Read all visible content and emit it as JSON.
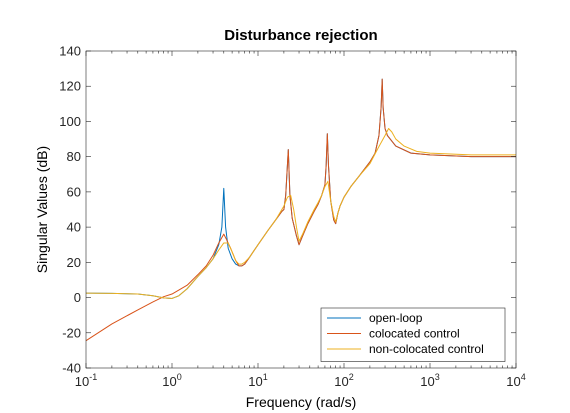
{
  "chart_data": {
    "type": "line",
    "title": "Disturbance rejection",
    "xlabel": "Frequency (rad/s)",
    "ylabel": "Singular Values (dB)",
    "xscale": "log",
    "xlim": [
      0.1,
      10000
    ],
    "ylim": [
      -40,
      140
    ],
    "xticks": [
      {
        "value": 0.1,
        "base": "10",
        "exp": "-1"
      },
      {
        "value": 1,
        "base": "10",
        "exp": "0"
      },
      {
        "value": 10,
        "base": "10",
        "exp": "1"
      },
      {
        "value": 100,
        "base": "10",
        "exp": "2"
      },
      {
        "value": 1000,
        "base": "10",
        "exp": "3"
      },
      {
        "value": 10000,
        "base": "10",
        "exp": "4"
      }
    ],
    "yticks": [
      -40,
      -20,
      0,
      20,
      40,
      60,
      80,
      100,
      120,
      140
    ],
    "grid": false,
    "legend_position": "bottom-right",
    "series": [
      {
        "name": "open-loop",
        "color": "#0072BD",
        "points": [
          [
            0.1,
            2.5
          ],
          [
            0.2,
            2.4
          ],
          [
            0.4,
            2
          ],
          [
            0.6,
            1
          ],
          [
            0.8,
            -0.2
          ],
          [
            1.0,
            -0.5
          ],
          [
            1.2,
            1
          ],
          [
            1.5,
            5
          ],
          [
            2.0,
            12
          ],
          [
            2.5,
            17
          ],
          [
            3.0,
            22
          ],
          [
            3.5,
            30
          ],
          [
            3.8,
            40
          ],
          [
            4.0,
            62
          ],
          [
            4.2,
            40
          ],
          [
            4.5,
            28
          ],
          [
            5.0,
            22
          ],
          [
            5.5,
            19
          ],
          [
            6.0,
            18
          ],
          [
            6.5,
            18
          ],
          [
            7.0,
            19
          ],
          [
            8.0,
            23
          ],
          [
            10,
            30
          ],
          [
            13,
            38
          ],
          [
            16,
            44
          ],
          [
            19,
            49
          ],
          [
            20,
            50
          ],
          [
            21,
            58
          ],
          [
            22.5,
            84
          ],
          [
            23.5,
            58
          ],
          [
            25,
            45
          ],
          [
            28,
            35
          ],
          [
            30,
            30
          ],
          [
            33,
            35
          ],
          [
            38,
            42
          ],
          [
            45,
            49
          ],
          [
            50,
            53
          ],
          [
            55,
            58
          ],
          [
            60,
            64
          ],
          [
            62,
            75
          ],
          [
            64,
            93
          ],
          [
            66,
            75
          ],
          [
            70,
            55
          ],
          [
            76,
            44
          ],
          [
            80,
            42
          ],
          [
            85,
            48
          ],
          [
            90,
            52
          ],
          [
            100,
            57
          ],
          [
            120,
            63
          ],
          [
            150,
            69
          ],
          [
            200,
            77
          ],
          [
            230,
            82
          ],
          [
            255,
            92
          ],
          [
            270,
            108
          ],
          [
            278,
            124
          ],
          [
            285,
            108
          ],
          [
            300,
            96
          ],
          [
            320,
            92
          ],
          [
            400,
            86
          ],
          [
            600,
            82
          ],
          [
            1000,
            81
          ],
          [
            3000,
            80
          ],
          [
            10000,
            80
          ]
        ]
      },
      {
        "name": "colocated control",
        "color": "#D95319",
        "points": [
          [
            0.1,
            -24.5
          ],
          [
            0.2,
            -15
          ],
          [
            0.4,
            -7
          ],
          [
            0.6,
            -2.5
          ],
          [
            0.8,
            0.5
          ],
          [
            1.0,
            2
          ],
          [
            1.5,
            7
          ],
          [
            2.0,
            13
          ],
          [
            2.5,
            18
          ],
          [
            3.0,
            24
          ],
          [
            3.5,
            31
          ],
          [
            4.0,
            36
          ],
          [
            4.3,
            33
          ],
          [
            4.8,
            28
          ],
          [
            5.5,
            21
          ],
          [
            6.0,
            18
          ],
          [
            6.5,
            18
          ],
          [
            7.0,
            19
          ],
          [
            8.0,
            23
          ],
          [
            10,
            30
          ],
          [
            13,
            38
          ],
          [
            16,
            44
          ],
          [
            19,
            49
          ],
          [
            20,
            50
          ],
          [
            21,
            58
          ],
          [
            22.5,
            84
          ],
          [
            23.5,
            58
          ],
          [
            25,
            45
          ],
          [
            28,
            35
          ],
          [
            30,
            30
          ],
          [
            33,
            35
          ],
          [
            38,
            42
          ],
          [
            45,
            49
          ],
          [
            50,
            53
          ],
          [
            55,
            58
          ],
          [
            60,
            64
          ],
          [
            62,
            75
          ],
          [
            64,
            93
          ],
          [
            66,
            75
          ],
          [
            70,
            55
          ],
          [
            76,
            44
          ],
          [
            80,
            42
          ],
          [
            85,
            48
          ],
          [
            90,
            52
          ],
          [
            100,
            57
          ],
          [
            120,
            63
          ],
          [
            150,
            69
          ],
          [
            200,
            77
          ],
          [
            230,
            82
          ],
          [
            255,
            92
          ],
          [
            270,
            108
          ],
          [
            278,
            124
          ],
          [
            285,
            108
          ],
          [
            300,
            96
          ],
          [
            320,
            92
          ],
          [
            400,
            86
          ],
          [
            600,
            82
          ],
          [
            1000,
            81
          ],
          [
            3000,
            80
          ],
          [
            10000,
            80
          ]
        ]
      },
      {
        "name": "non-colocated control",
        "color": "#EDB120",
        "points": [
          [
            0.1,
            2.5
          ],
          [
            0.2,
            2.4
          ],
          [
            0.4,
            2
          ],
          [
            0.6,
            1
          ],
          [
            0.8,
            -0.2
          ],
          [
            1.0,
            -0.5
          ],
          [
            1.2,
            1
          ],
          [
            1.5,
            5
          ],
          [
            2.0,
            12
          ],
          [
            2.5,
            17
          ],
          [
            3.0,
            22
          ],
          [
            3.5,
            27
          ],
          [
            4.0,
            31
          ],
          [
            4.5,
            31
          ],
          [
            5.0,
            26
          ],
          [
            5.5,
            21
          ],
          [
            6.0,
            19
          ],
          [
            6.5,
            19
          ],
          [
            7.0,
            20
          ],
          [
            8.0,
            23
          ],
          [
            10,
            30
          ],
          [
            13,
            38
          ],
          [
            16,
            44
          ],
          [
            20,
            52
          ],
          [
            22,
            57
          ],
          [
            24,
            58
          ],
          [
            26,
            50
          ],
          [
            28,
            40
          ],
          [
            30,
            32
          ],
          [
            33,
            36
          ],
          [
            38,
            43
          ],
          [
            45,
            50
          ],
          [
            50,
            54
          ],
          [
            55,
            58
          ],
          [
            60,
            63
          ],
          [
            65,
            66
          ],
          [
            70,
            55
          ],
          [
            76,
            46
          ],
          [
            80,
            43
          ],
          [
            85,
            48
          ],
          [
            90,
            52
          ],
          [
            100,
            57
          ],
          [
            120,
            63
          ],
          [
            150,
            69
          ],
          [
            200,
            76
          ],
          [
            250,
            85
          ],
          [
            300,
            92
          ],
          [
            330,
            96
          ],
          [
            360,
            94
          ],
          [
            400,
            90
          ],
          [
            500,
            86
          ],
          [
            700,
            83
          ],
          [
            1000,
            82
          ],
          [
            3000,
            81
          ],
          [
            10000,
            81
          ]
        ]
      }
    ]
  }
}
